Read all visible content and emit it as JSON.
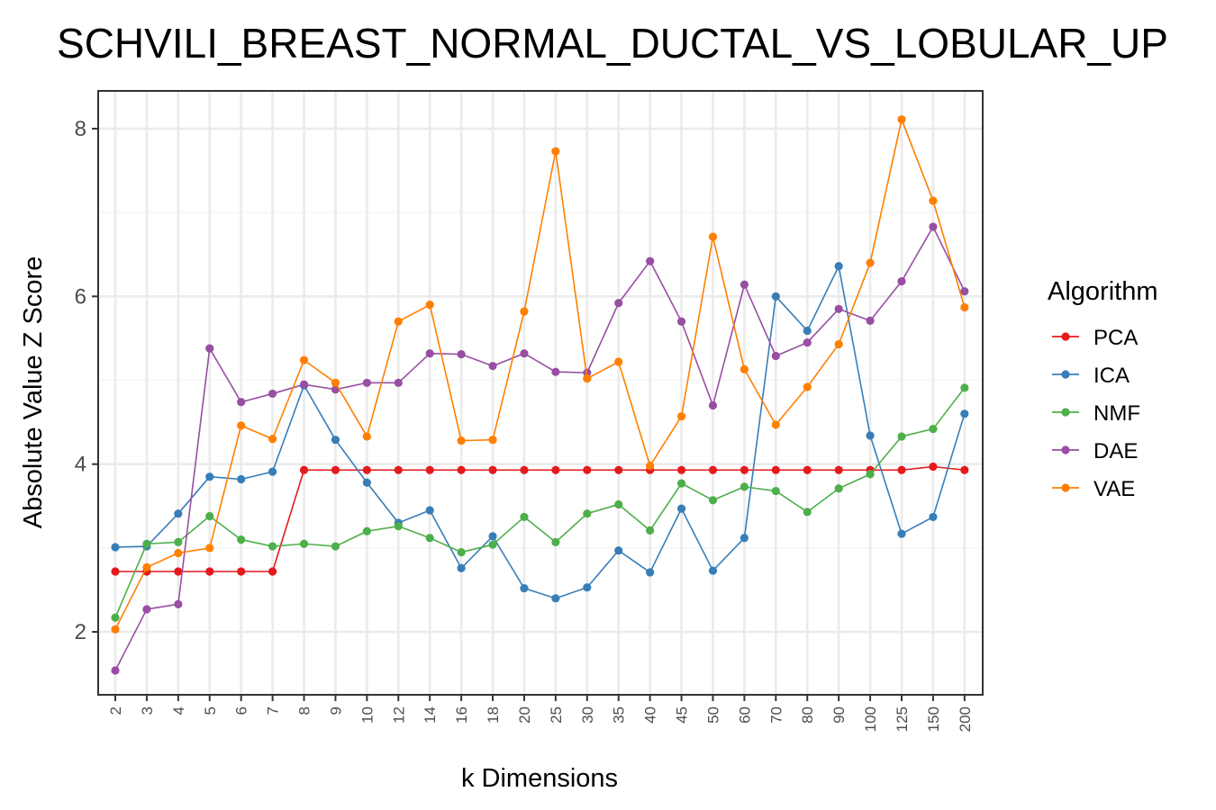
{
  "chart_data": {
    "type": "line",
    "title": "SCHVILI_BREAST_NORMAL_DUCTAL_VS_LOBULAR_UP",
    "xlabel": "k Dimensions",
    "ylabel": "Absolute Value Z Score",
    "categories": [
      "2",
      "3",
      "4",
      "5",
      "6",
      "7",
      "8",
      "9",
      "10",
      "12",
      "14",
      "16",
      "18",
      "20",
      "25",
      "30",
      "35",
      "40",
      "45",
      "50",
      "60",
      "70",
      "80",
      "90",
      "100",
      "125",
      "150",
      "200"
    ],
    "y_ticks": [
      "2",
      "4",
      "6",
      "8"
    ],
    "ylim": [
      1.25,
      8.45
    ],
    "grid": true,
    "legend": {
      "title": "Algorithm",
      "position": "right"
    },
    "series": [
      {
        "name": "PCA",
        "color": "#e41a1c",
        "values": [
          2.72,
          2.72,
          2.72,
          2.72,
          2.72,
          2.72,
          3.93,
          3.93,
          3.93,
          3.93,
          3.93,
          3.93,
          3.93,
          3.93,
          3.93,
          3.93,
          3.93,
          3.93,
          3.93,
          3.93,
          3.93,
          3.93,
          3.93,
          3.93,
          3.93,
          3.93,
          3.97,
          3.93
        ]
      },
      {
        "name": "ICA",
        "color": "#377eb8",
        "values": [
          3.01,
          3.02,
          3.41,
          3.85,
          3.82,
          3.91,
          4.94,
          4.29,
          3.78,
          3.3,
          3.45,
          2.76,
          3.14,
          2.52,
          2.4,
          2.53,
          2.97,
          2.71,
          3.47,
          2.73,
          3.12,
          6.0,
          5.59,
          6.36,
          4.34,
          3.17,
          3.37,
          4.6
        ]
      },
      {
        "name": "NMF",
        "color": "#4daf4a",
        "values": [
          2.17,
          3.05,
          3.07,
          3.38,
          3.1,
          3.02,
          3.05,
          3.02,
          3.2,
          3.26,
          3.12,
          2.95,
          3.04,
          3.37,
          3.07,
          3.41,
          3.52,
          3.21,
          3.77,
          3.57,
          3.73,
          3.68,
          3.43,
          3.71,
          3.88,
          4.33,
          4.42,
          4.91
        ]
      },
      {
        "name": "DAE",
        "color": "#984ea3",
        "values": [
          1.54,
          2.27,
          2.33,
          5.38,
          4.74,
          4.84,
          4.95,
          4.89,
          4.97,
          4.97,
          5.32,
          5.31,
          5.17,
          5.32,
          5.1,
          5.09,
          5.92,
          6.42,
          5.7,
          4.7,
          6.14,
          5.29,
          5.45,
          5.85,
          5.71,
          6.18,
          6.83,
          6.06
        ]
      },
      {
        "name": "VAE",
        "color": "#ff7f00",
        "values": [
          2.03,
          2.77,
          2.94,
          3.0,
          4.46,
          4.3,
          5.24,
          4.97,
          4.33,
          5.7,
          5.9,
          4.28,
          4.29,
          5.82,
          7.73,
          5.02,
          5.22,
          3.98,
          4.57,
          6.71,
          5.13,
          4.47,
          4.92,
          5.43,
          6.4,
          8.11,
          7.14,
          5.87
        ]
      }
    ]
  }
}
